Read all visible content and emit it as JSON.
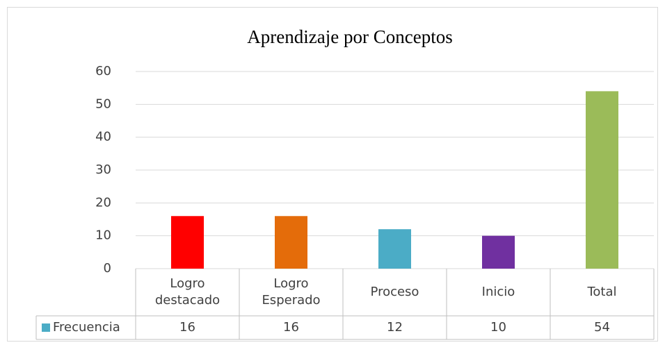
{
  "chart_data": {
    "type": "bar",
    "title": "Aprendizaje por Conceptos",
    "categories": [
      "Logro destacado",
      "Logro Esperado",
      "Proceso",
      "Inicio",
      "Total"
    ],
    "series": [
      {
        "name": "Frecuencia",
        "color": "#4bacc6",
        "values": [
          16,
          16,
          12,
          10,
          54
        ],
        "colors": [
          "#ff0000",
          "#e46c0a",
          "#4bacc6",
          "#7030a0",
          "#9bbb59"
        ]
      }
    ],
    "ylim": [
      0,
      60
    ],
    "yticks": [
      0,
      10,
      20,
      30,
      40,
      50,
      60
    ],
    "grid": true,
    "data_table": true
  }
}
